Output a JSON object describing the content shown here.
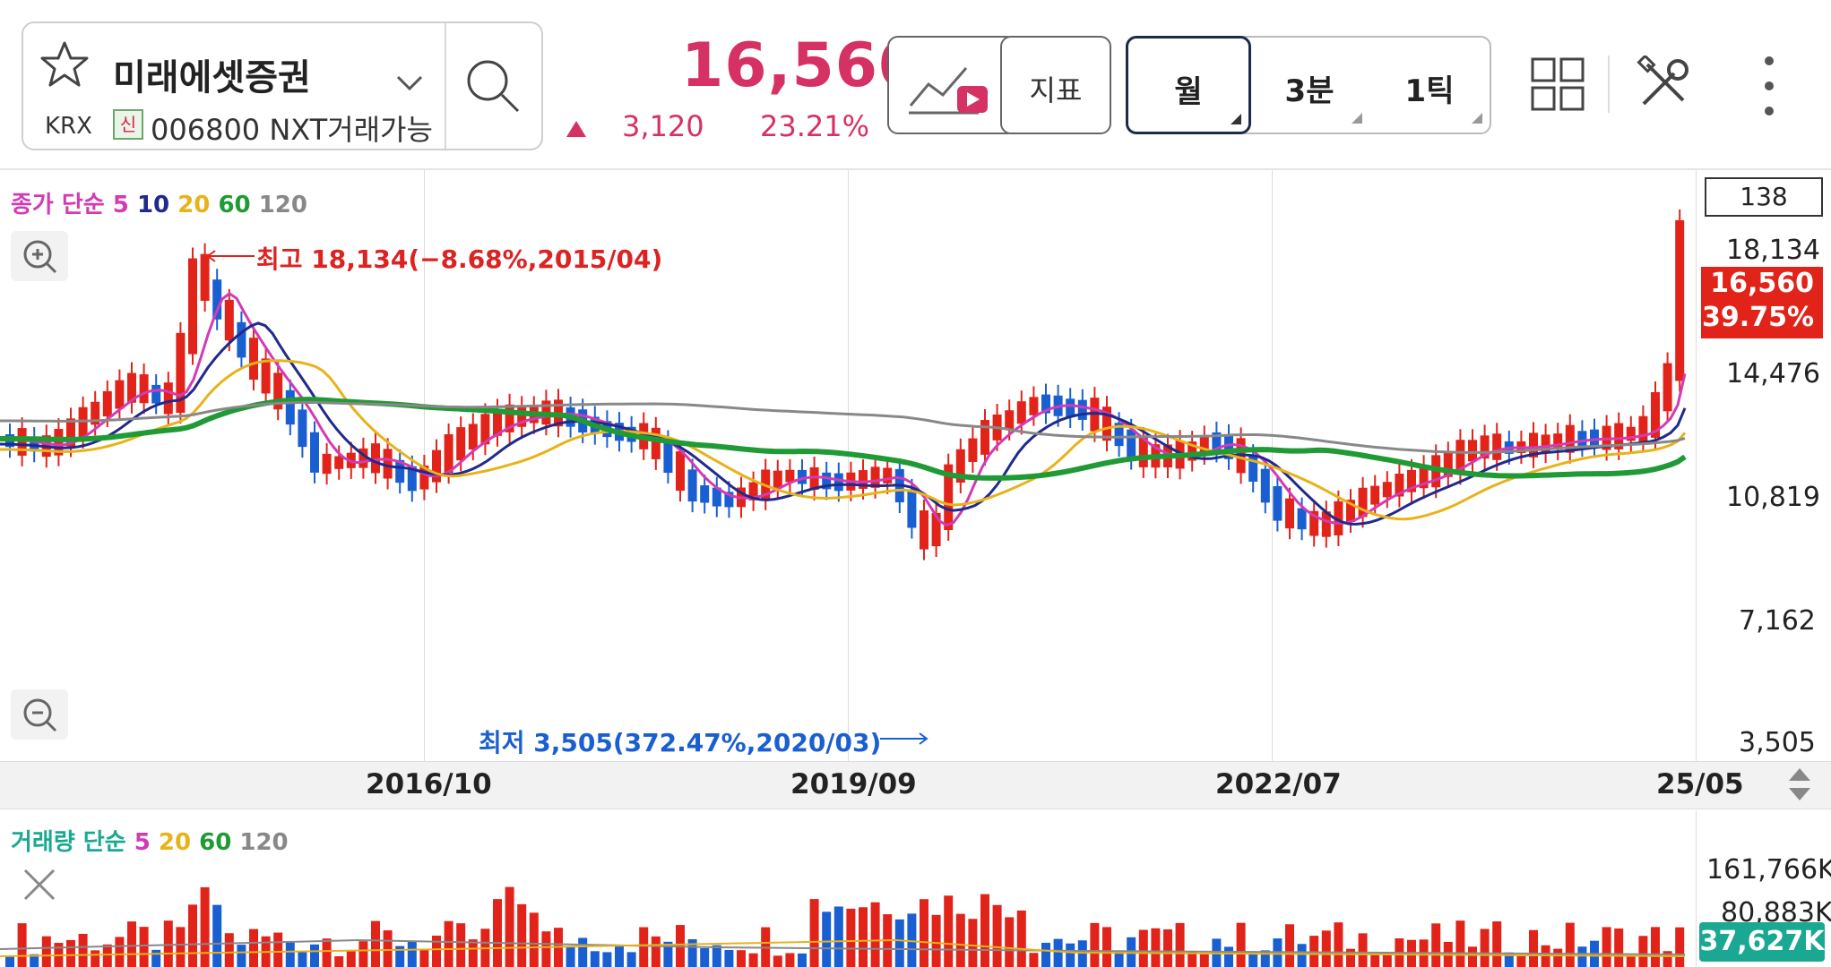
{
  "header": {
    "stock_name": "미래에셋증권",
    "market": "KRX",
    "credit_badge": "신",
    "code_line": "006800 NXT거래가능",
    "price": "16,560",
    "change": "3,120",
    "change_rate": "23.21%",
    "indicator_label": "지표",
    "period_month": "월",
    "period_3min": "3분",
    "period_1tick": "1틱"
  },
  "colors": {
    "up": "#e2231a",
    "down": "#1a5fd1",
    "ma5": "#d23bb4",
    "ma10": "#1f2a8c",
    "ma20": "#e8b21a",
    "ma60": "#1f9a35",
    "ma120": "#888888"
  },
  "price_chart": {
    "ma_legend": {
      "prefix": "종가 단순",
      "p5": "5",
      "p10": "10",
      "p20": "20",
      "p60": "60",
      "p120": "120"
    },
    "visible_count": "138",
    "high_note": "최고 18,134(−8.68%,2015/04)",
    "low_note": "최저 3,505(372.47%,2020/03)",
    "y_ticks": [
      "18,134",
      "14,476",
      "10,819",
      "7,162",
      "3,505"
    ],
    "current_price_tag": "16,560",
    "current_rate_tag": "39.75%",
    "x_ticks": [
      "2016/10",
      "2019/09",
      "2022/07",
      "25/05"
    ]
  },
  "volume_chart": {
    "legend_prefix": "거래량 단순",
    "p5": "5",
    "p20": "20",
    "p60": "60",
    "p120": "120",
    "y_ticks": [
      "161,766K",
      "80,883K"
    ],
    "current_volume": "37,627K"
  }
}
